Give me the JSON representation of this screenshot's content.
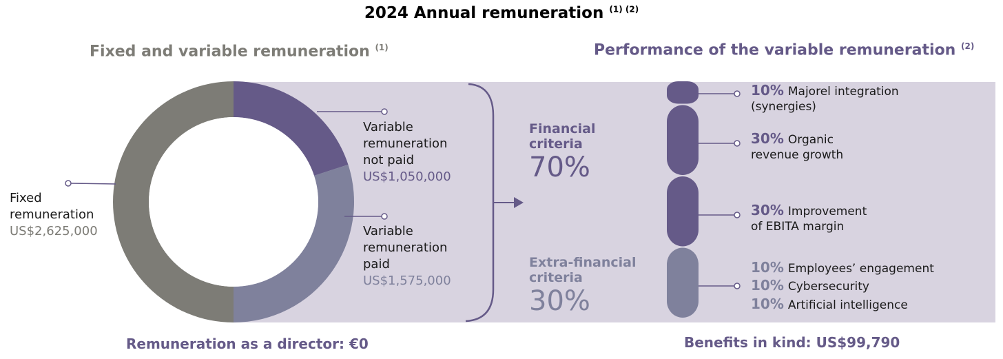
{
  "title": "2024 Annual remuneration",
  "title_notes": "(1) (2)",
  "left_heading": "Fixed and variable remuneration",
  "left_heading_note": "(1)",
  "right_heading": "Performance of the variable remuneration",
  "right_heading_note": "(2)",
  "colors": {
    "fixed": "#7d7c76",
    "variable_not_paid": "#655a88",
    "variable_paid": "#7f819c",
    "band": "#d8d3e0"
  },
  "chart_data": [
    {
      "type": "pie",
      "title": "Fixed and variable remuneration",
      "slices": [
        {
          "name": "Fixed remuneration",
          "amount_label": "US$2,625,000",
          "value": 2625000
        },
        {
          "name": "Variable remuneration not paid",
          "amount_label": "US$1,050,000",
          "value": 1050000
        },
        {
          "name": "Variable remuneration paid",
          "amount_label": "US$1,575,000",
          "value": 1575000
        }
      ]
    },
    {
      "type": "bar",
      "title": "Performance of the variable remuneration",
      "groups": [
        {
          "name": "Financial criteria",
          "pct_label": "70%",
          "value": 70
        },
        {
          "name": "Extra-financial criteria",
          "pct_label": "30%",
          "value": 30
        }
      ],
      "criteria": [
        {
          "pct": "10%",
          "label_line1": "Majorel integration",
          "label_line2": "(synergies)",
          "value": 10,
          "group": "financial"
        },
        {
          "pct": "30%",
          "label_line1": "Organic",
          "label_line2": "revenue growth",
          "value": 30,
          "group": "financial"
        },
        {
          "pct": "30%",
          "label_line1": "Improvement",
          "label_line2": "of EBITA margin",
          "value": 30,
          "group": "financial"
        },
        {
          "pct": "10%",
          "label_line1": "Employees’ engagement",
          "value": 10,
          "group": "extra"
        },
        {
          "pct": "10%",
          "label_line1": "Cybersecurity",
          "value": 10,
          "group": "extra"
        },
        {
          "pct": "10%",
          "label_line1": "Artificial intelligence",
          "value": 10,
          "group": "extra"
        }
      ]
    }
  ],
  "labels": {
    "fixed_line1": "Fixed",
    "fixed_line2": "remuneration",
    "not_paid_line1": "Variable",
    "not_paid_line2": "remuneration",
    "not_paid_line3": "not paid",
    "paid_line1": "Variable",
    "paid_line2": "remuneration",
    "paid_line3": "paid",
    "fin_line1": "Financial",
    "fin_line2": "criteria",
    "extra_line1": "Extra-financial",
    "extra_line2": "criteria"
  },
  "footer": {
    "director": "Remuneration as a director: €0",
    "benefits": "Benefits in kind: US$99,790"
  }
}
